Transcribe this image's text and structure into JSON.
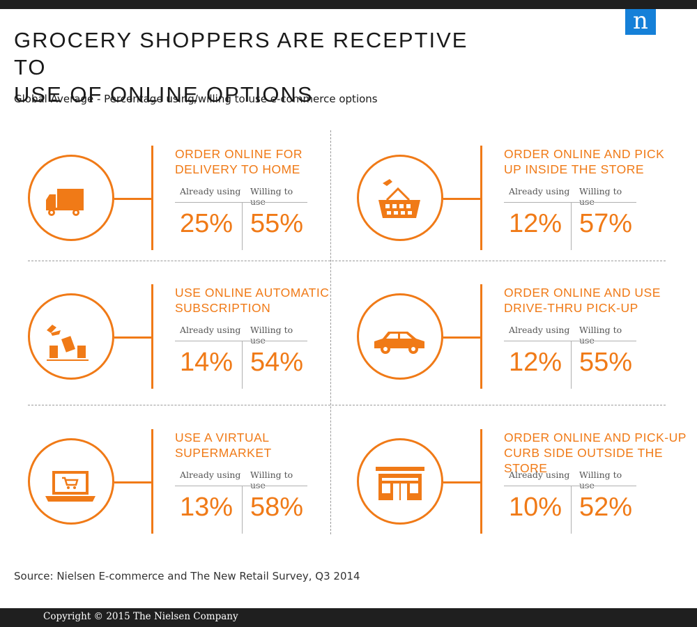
{
  "header": {
    "title_line1": "GROCERY SHOPPERS ARE RECEPTIVE TO",
    "title_line2": "USE OF ONLINE OPTIONS",
    "subtitle": "Global Average - Percentage using/willing to use e-commerce options",
    "logo_letter": "n"
  },
  "colors": {
    "accent": "#f07a17",
    "logo": "#1580d8",
    "bars": "#1f1f1f"
  },
  "chart_data": {
    "type": "table",
    "title": "GROCERY SHOPPERS ARE RECEPTIVE TO USE OF ONLINE OPTIONS",
    "subtitle": "Global Average - Percentage using/willing to use e-commerce options",
    "columns": [
      "Already using",
      "Willing to use"
    ],
    "unit": "%",
    "rows": [
      {
        "title_lines": [
          "ORDER ONLINE FOR",
          "DELIVERY TO HOME"
        ],
        "icon": "delivery-truck-icon",
        "already": 25,
        "willing": 55
      },
      {
        "title_lines": [
          "ORDER ONLINE AND PICK",
          "UP INSIDE THE STORE"
        ],
        "icon": "shopping-basket-icon",
        "already": 12,
        "willing": 57
      },
      {
        "title_lines": [
          "USE ONLINE AUTOMATIC",
          "SUBSCRIPTION"
        ],
        "icon": "subscription-boxes-icon",
        "already": 14,
        "willing": 54
      },
      {
        "title_lines": [
          "ORDER ONLINE AND USE",
          "DRIVE-THRU PICK-UP"
        ],
        "icon": "car-icon",
        "already": 12,
        "willing": 55
      },
      {
        "title_lines": [
          "USE A VIRTUAL",
          "SUPERMARKET"
        ],
        "icon": "laptop-cart-icon",
        "already": 13,
        "willing": 58
      },
      {
        "title_lines": [
          "ORDER ONLINE AND PICK-UP",
          "CURB SIDE OUTSIDE THE STORE"
        ],
        "icon": "storefront-icon",
        "already": 10,
        "willing": 52
      }
    ]
  },
  "source": "Source: Nielsen E-commerce and The New Retail Survey, Q3 2014",
  "footer": {
    "copyright": "Copyright © 2015 The Nielsen Company"
  }
}
